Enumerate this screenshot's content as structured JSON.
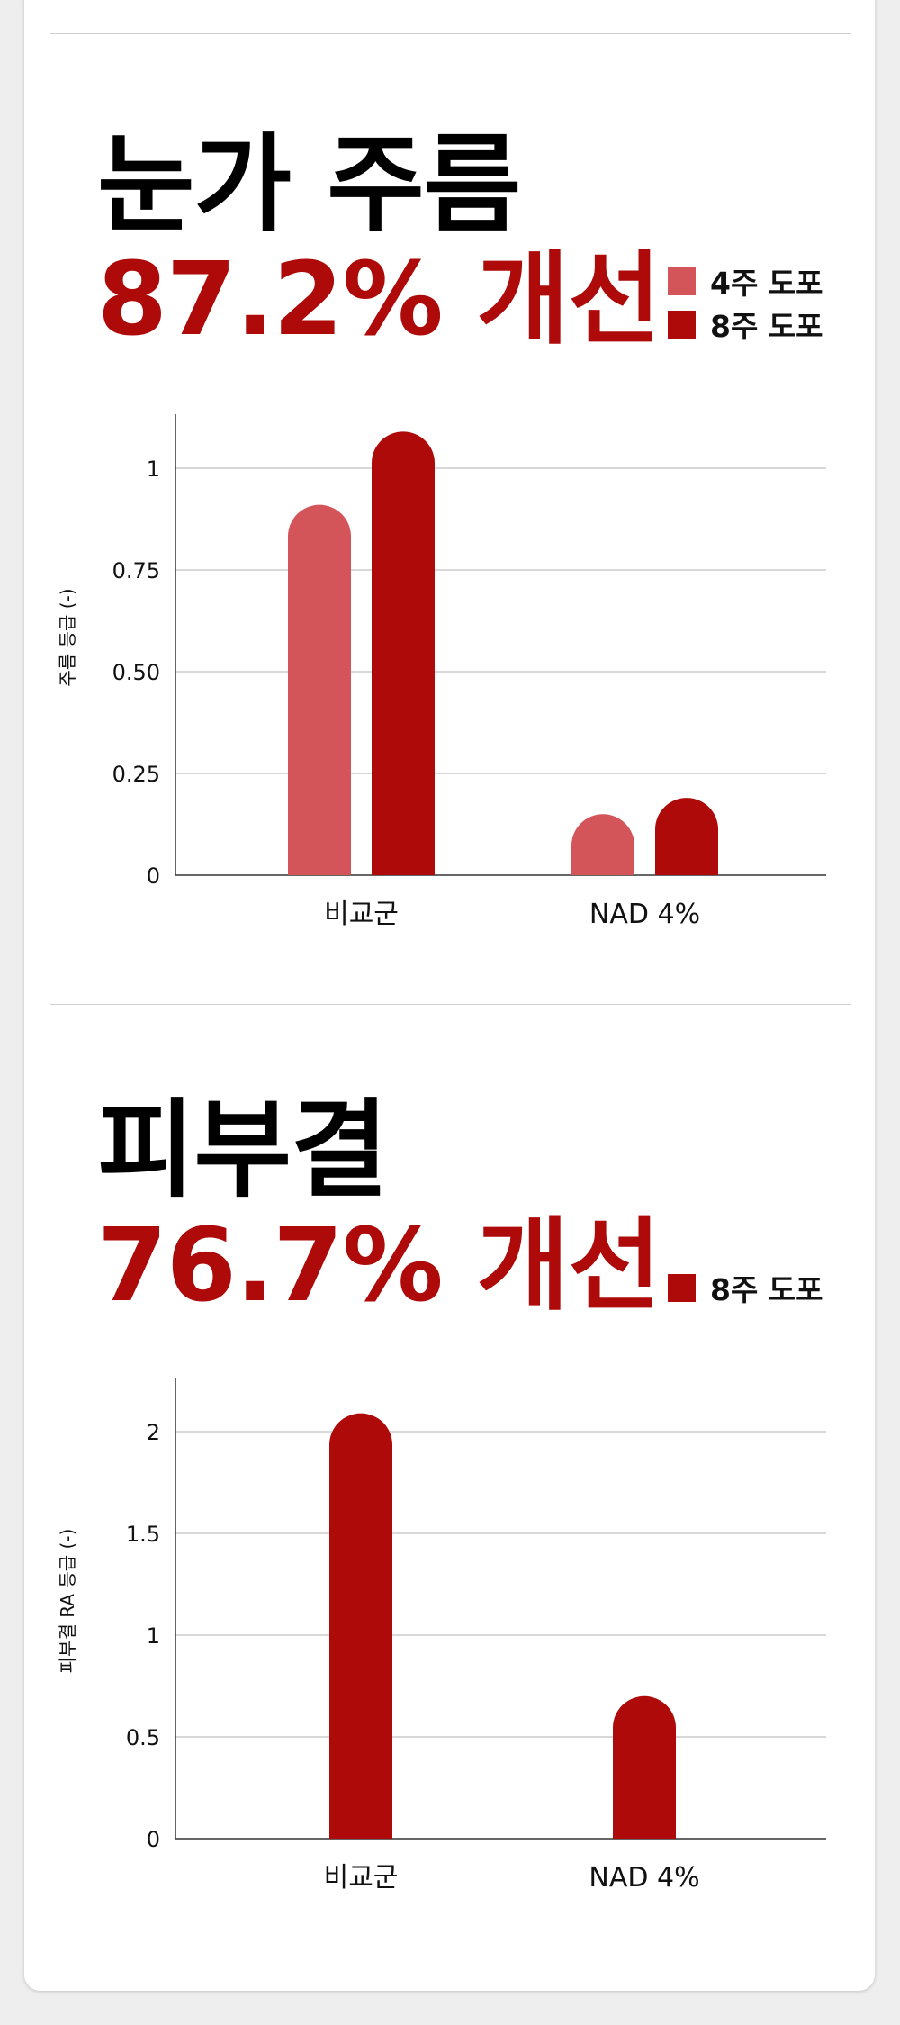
{
  "colors": {
    "week4": "#d35459",
    "week8": "#ad0a09",
    "accent": "#ad0a09"
  },
  "sections": [
    {
      "title": "눈가 주름",
      "improvement": "87.2% 개선",
      "legend": [
        "4주 도포",
        "8주 도포"
      ]
    },
    {
      "title": "피부결",
      "improvement": "76.7% 개선",
      "legend": [
        "8주 도포"
      ]
    }
  ],
  "chart_data": [
    {
      "type": "bar",
      "categories": [
        "비교군",
        "NAD 4%"
      ],
      "series": [
        {
          "name": "4주 도포",
          "color": "#d35459",
          "values": [
            0.91,
            0.15
          ]
        },
        {
          "name": "8주 도포",
          "color": "#ad0a09",
          "values": [
            1.09,
            0.19
          ]
        }
      ],
      "ylabel": "주름 등급 (-)",
      "ylim": [
        0,
        1.1
      ],
      "yticks": [
        0,
        0.25,
        0.5,
        0.75,
        1
      ],
      "ytick_labels": [
        "0",
        "0.25",
        "0.50",
        "0.75",
        "1"
      ],
      "grid": true,
      "legend": "top-right"
    },
    {
      "type": "bar",
      "categories": [
        "비교군",
        "NAD 4%"
      ],
      "series": [
        {
          "name": "8주 도포",
          "color": "#ad0a09",
          "values": [
            2.09,
            0.7
          ]
        }
      ],
      "ylabel": "피부결 RA 등급 (-)",
      "ylim": [
        0,
        2.2
      ],
      "yticks": [
        0,
        0.5,
        1,
        1.5,
        2
      ],
      "ytick_labels": [
        "0",
        "0.5",
        "1",
        "1.5",
        "2"
      ],
      "grid": true,
      "legend": "top-right"
    }
  ]
}
